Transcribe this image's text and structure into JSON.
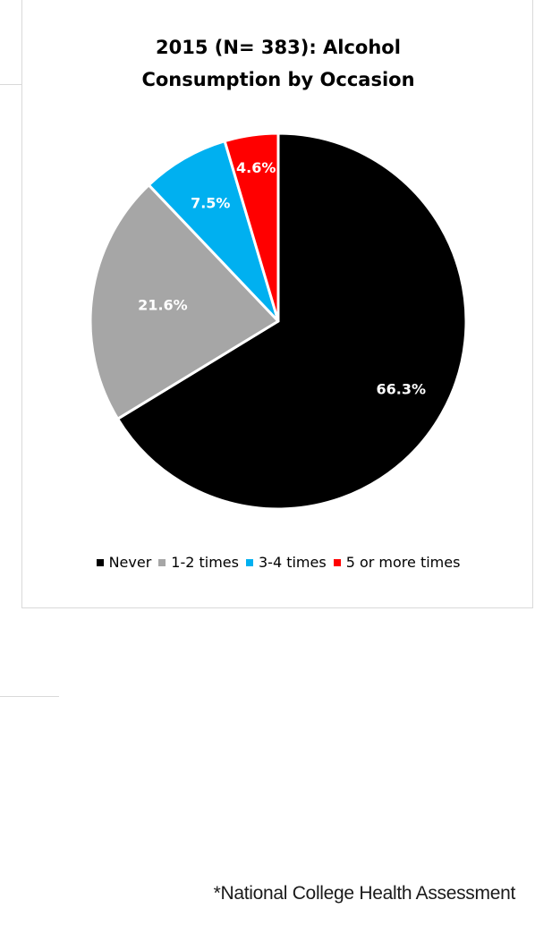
{
  "chart_data": {
    "type": "pie",
    "title": "2015 (N= 383): Alcohol Consumption by Occasion",
    "title_lines": [
      "2015 (N= 383): Alcohol",
      "Consumption by Occasion"
    ],
    "categories": [
      "Never",
      "1-2 times",
      "3-4 times",
      "5 or more times"
    ],
    "values": [
      66.3,
      21.6,
      7.5,
      4.6
    ],
    "data_labels": [
      "66.3%",
      "21.6%",
      "7.5%",
      "4.6%"
    ],
    "colors": [
      "#000000",
      "#a6a6a6",
      "#00b0f0",
      "#ff0000"
    ],
    "legend_position": "bottom"
  },
  "footnote": "*National College Health Assessment"
}
